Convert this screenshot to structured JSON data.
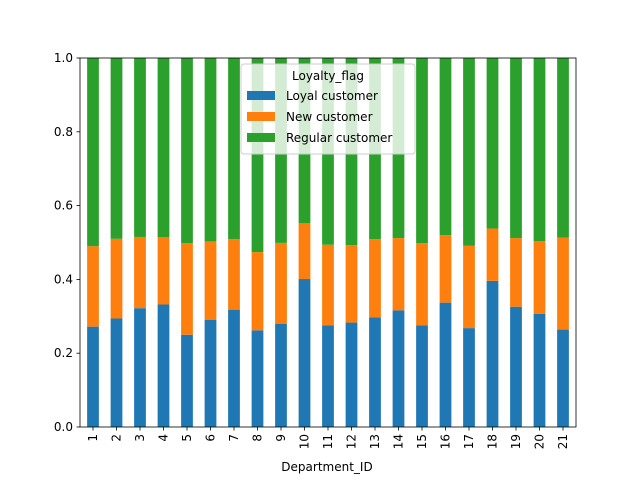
{
  "chart_data": {
    "type": "bar",
    "stacked": true,
    "categories": [
      "1",
      "2",
      "3",
      "4",
      "5",
      "6",
      "7",
      "8",
      "9",
      "10",
      "11",
      "12",
      "13",
      "14",
      "15",
      "16",
      "17",
      "18",
      "19",
      "20",
      "21"
    ],
    "series": [
      {
        "name": "Loyal customer",
        "color": "#1f77b4",
        "values": [
          0.272,
          0.294,
          0.322,
          0.332,
          0.25,
          0.29,
          0.318,
          0.262,
          0.28,
          0.401,
          0.275,
          0.283,
          0.297,
          0.316,
          0.275,
          0.337,
          0.268,
          0.396,
          0.326,
          0.307,
          0.264
        ]
      },
      {
        "name": "New customer",
        "color": "#ff7f0e",
        "values": [
          0.218,
          0.216,
          0.193,
          0.182,
          0.248,
          0.213,
          0.191,
          0.212,
          0.219,
          0.151,
          0.219,
          0.21,
          0.212,
          0.196,
          0.223,
          0.183,
          0.223,
          0.142,
          0.186,
          0.197,
          0.249
        ]
      },
      {
        "name": "Regular customer",
        "color": "#2ca02c",
        "values": [
          0.51,
          0.49,
          0.485,
          0.486,
          0.502,
          0.497,
          0.491,
          0.526,
          0.501,
          0.448,
          0.506,
          0.507,
          0.491,
          0.488,
          0.502,
          0.48,
          0.509,
          0.462,
          0.488,
          0.496,
          0.487
        ]
      }
    ],
    "xlabel": "Department_ID",
    "ylabel": "",
    "ylim": [
      0,
      1.0
    ],
    "yticks": [
      "0.0",
      "0.2",
      "0.4",
      "0.6",
      "0.8",
      "1.0"
    ],
    "legend": {
      "title": "Loyalty_flag",
      "placement": "top-center"
    },
    "grid": false
  }
}
